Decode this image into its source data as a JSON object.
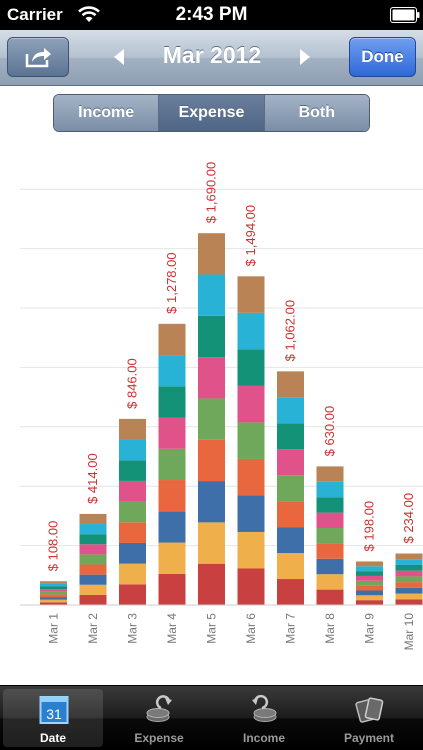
{
  "status_bar": {
    "carrier": "Carrier",
    "time": "2:43 PM"
  },
  "nav": {
    "title": "Mar 2012",
    "done_label": "Done"
  },
  "segments": {
    "items": [
      {
        "label": "Income",
        "selected": false
      },
      {
        "label": "Expense",
        "selected": true
      },
      {
        "label": "Both",
        "selected": false
      }
    ]
  },
  "chart_data": {
    "type": "bar",
    "stacked": true,
    "categories": [
      "Mar 1",
      "Mar 2",
      "Mar 3",
      "Mar 4",
      "Mar 5",
      "Mar 6",
      "Mar 7",
      "Mar 8",
      "Mar 9",
      "Mar 10"
    ],
    "totals": [
      108,
      414,
      846,
      1278,
      1690,
      1494,
      1062,
      630,
      198,
      234
    ],
    "total_labels": [
      "$ 108.00",
      "$ 414.00",
      "$ 846.00",
      "$ 1,278.00",
      "$ 1,690.00",
      "$ 1,494.00",
      "$ 1,062.00",
      "$ 630.00",
      "$ 198.00",
      "$ 234.00"
    ],
    "segment_colors": [
      "#c94040",
      "#efaf4b",
      "#3f6fa8",
      "#e8673f",
      "#6fa85a",
      "#e0528a",
      "#139277",
      "#27b2d6",
      "#b98356"
    ],
    "ylim": [
      0,
      1900
    ],
    "grid": true,
    "total_label_color": "#cc3333"
  },
  "tabbar": {
    "items": [
      {
        "label": "Date",
        "icon": "calendar-icon",
        "day": "31",
        "selected": true
      },
      {
        "label": "Expense",
        "icon": "coins-out-icon",
        "selected": false
      },
      {
        "label": "Income",
        "icon": "coins-in-icon",
        "selected": false
      },
      {
        "label": "Payment",
        "icon": "cards-icon",
        "selected": false
      }
    ]
  }
}
